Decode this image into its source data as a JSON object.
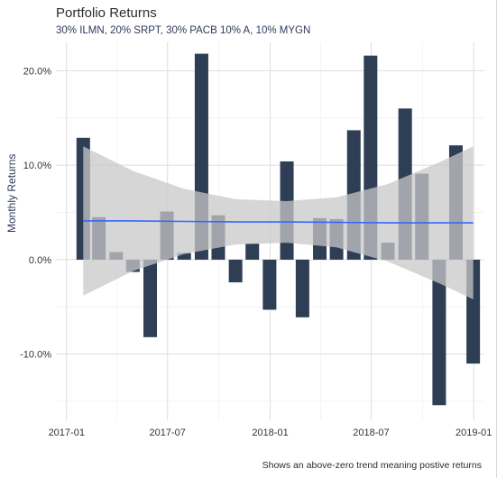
{
  "chart_data": {
    "type": "bar",
    "title": "Portfolio Returns",
    "subtitle": "30% ILMN, 20% SRPT, 30% PACB 10% A, 10% MYGN",
    "ylabel": "Monthly Returns",
    "caption": "Shows an above-zero trend meaning postive returns",
    "x": [
      "2017-01-31",
      "2017-02-28",
      "2017-03-31",
      "2017-04-30",
      "2017-05-31",
      "2017-06-30",
      "2017-07-31",
      "2017-08-31",
      "2017-09-30",
      "2017-10-31",
      "2017-11-30",
      "2017-12-31",
      "2018-01-31",
      "2018-02-28",
      "2018-03-31",
      "2018-04-30",
      "2018-05-31",
      "2018-06-30",
      "2018-07-31",
      "2018-08-31",
      "2018-09-30",
      "2018-10-31",
      "2018-11-30",
      "2018-12-31"
    ],
    "values": [
      12.9,
      4.5,
      0.8,
      -1.3,
      -8.2,
      5.1,
      0.7,
      21.8,
      4.7,
      -2.4,
      1.7,
      -5.3,
      10.4,
      -6.1,
      4.4,
      4.3,
      13.7,
      21.6,
      1.8,
      16.0,
      9.1,
      -15.4,
      12.1,
      -11.0
    ],
    "trend": {
      "x": [
        "2017-01-31",
        "2017-04-30",
        "2017-07-31",
        "2017-10-31",
        "2018-01-31",
        "2018-04-30",
        "2018-07-31",
        "2018-10-31",
        "2018-12-31"
      ],
      "fit": [
        4.1,
        4.1,
        4.05,
        4.0,
        4.0,
        3.95,
        3.9,
        3.9,
        3.9
      ],
      "lower": [
        -3.8,
        -1.2,
        0.6,
        1.6,
        1.8,
        1.3,
        -0.2,
        -2.5,
        -4.2
      ],
      "upper": [
        12.0,
        9.4,
        7.5,
        6.4,
        6.2,
        6.6,
        8.0,
        10.3,
        12.0
      ]
    },
    "ylim": [
      -17,
      23
    ],
    "yticks": [
      -10,
      0,
      10,
      20
    ],
    "ytick_labels": [
      "-10.0%",
      "0.0%",
      "10.0%",
      "20.0%"
    ],
    "xlim": [
      "2016-12-13",
      "2019-01-20"
    ],
    "xticks": [
      "2017-01-01",
      "2017-07-01",
      "2018-01-01",
      "2018-07-01",
      "2019-01-01"
    ],
    "xtick_labels": [
      "2017-01",
      "2017-07",
      "2018-01",
      "2018-07",
      "2019-01"
    ],
    "grid": true,
    "colors": {
      "bar_positive": "#2e3e54",
      "bar_negative": "#2e3e54",
      "band": "#c8c8c8",
      "trend": "#3366ff",
      "grid": "#dedede"
    }
  }
}
